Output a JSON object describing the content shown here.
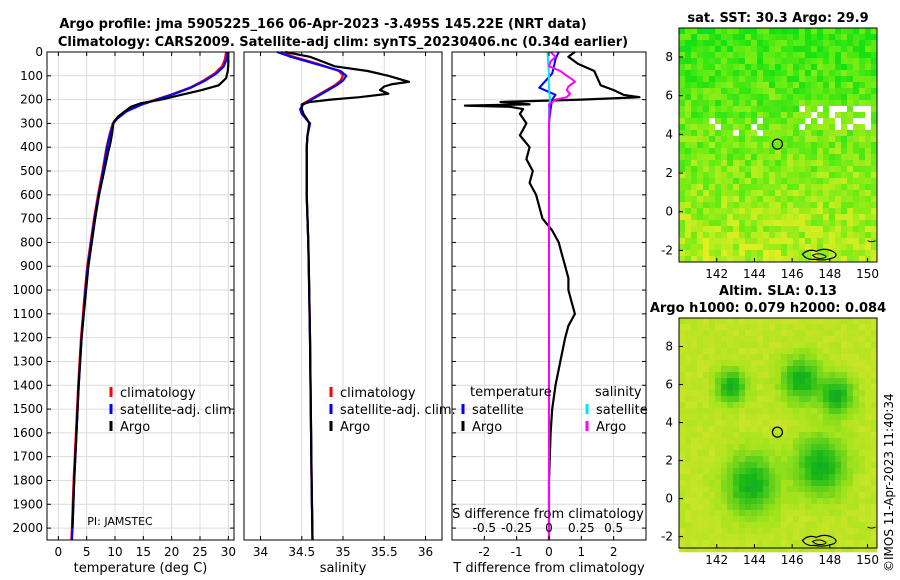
{
  "title_line1": "Argo profile: jma 5905225_166 06-Apr-2023 -3.495S 145.22E (NRT data)",
  "title_line2": "Climatology: CARS2009. Satellite-adj clim: synTS_20230406.nc (0.34d earlier)",
  "pi_label": "PI: JAMSTEC",
  "timestamp": "©IMOS 11-Apr-2023 11:40:34",
  "colors": {
    "climatology": "#ff0000",
    "satellite_adj": "#0000ff",
    "argo": "#000000",
    "sat_diff_s": "#00e5ff",
    "argo_diff_s": "#ff00ff"
  },
  "chart_data": [
    {
      "type": "line",
      "id": "temperature",
      "xlabel": "temperature (deg C)",
      "ylabel": "depth",
      "xlim": [
        -2,
        31
      ],
      "ylim": [
        0,
        2050
      ],
      "xticks": [
        0,
        5,
        10,
        15,
        20,
        25,
        30
      ],
      "yticks": [
        0,
        100,
        200,
        300,
        400,
        500,
        600,
        700,
        800,
        900,
        1000,
        1100,
        1200,
        1300,
        1400,
        1500,
        1600,
        1700,
        1800,
        1900,
        2000
      ],
      "legend": [
        "climatology",
        "satellite-adj. clim.",
        "Argo"
      ],
      "series": [
        {
          "name": "climatology",
          "depth": [
            0,
            30,
            60,
            90,
            120,
            150,
            180,
            200,
            220,
            250,
            280,
            300,
            350,
            400,
            500,
            600,
            700,
            800,
            900,
            1000,
            1200,
            1400,
            1600,
            1800,
            2000,
            2050
          ],
          "values": [
            29.6,
            29.4,
            28.9,
            27.6,
            25.6,
            23.2,
            19.8,
            17.2,
            14.6,
            11.9,
            10.3,
            9.6,
            9.0,
            8.5,
            7.8,
            7.0,
            6.3,
            5.7,
            5.1,
            4.7,
            4.0,
            3.5,
            3.1,
            2.7,
            2.4,
            2.3
          ]
        },
        {
          "name": "satellite-adj. clim.",
          "depth": [
            0,
            30,
            60,
            90,
            120,
            150,
            180,
            200,
            220,
            250,
            280,
            300,
            350,
            400,
            500,
            600,
            700,
            800,
            900,
            1000,
            1200,
            1400,
            1600,
            1800,
            2000,
            2050
          ],
          "values": [
            29.9,
            29.7,
            29.2,
            27.9,
            25.9,
            23.4,
            20.0,
            17.4,
            14.8,
            12.0,
            10.4,
            9.7,
            9.1,
            8.6,
            7.9,
            7.1,
            6.4,
            5.8,
            5.2,
            4.8,
            4.1,
            3.6,
            3.2,
            2.8,
            2.5,
            2.4
          ]
        },
        {
          "name": "Argo",
          "depth": [
            0,
            20,
            50,
            80,
            110,
            140,
            160,
            180,
            200,
            215,
            230,
            250,
            270,
            290,
            300,
            340,
            380,
            420,
            500,
            600,
            700,
            800,
            900,
            1000,
            1200,
            1400,
            1600,
            1800,
            2000
          ],
          "values": [
            30.0,
            30.0,
            30.0,
            29.9,
            29.6,
            28.3,
            25.3,
            21.7,
            18.2,
            14.6,
            12.8,
            11.7,
            10.6,
            9.9,
            9.7,
            9.5,
            9.2,
            8.8,
            8.1,
            7.2,
            6.5,
            5.9,
            5.3,
            4.9,
            4.1,
            3.6,
            3.2,
            2.8,
            2.5
          ]
        }
      ]
    },
    {
      "type": "line",
      "id": "salinity",
      "xlabel": "salinity",
      "ylabel": "depth",
      "xlim": [
        33.8,
        36.2
      ],
      "ylim": [
        0,
        2050
      ],
      "xticks": [
        34,
        34.5,
        35,
        35.5,
        36
      ],
      "tick_labels": [
        "34",
        "34.5",
        "35",
        "35.5",
        "36"
      ],
      "legend": [
        "climatology",
        "satellite-adj. clim.",
        "Argo"
      ],
      "series": [
        {
          "name": "climatology",
          "depth": [
            0,
            20,
            50,
            80,
            100,
            120,
            140,
            170,
            200,
            220,
            240,
            260,
            280,
            300,
            350,
            400,
            500,
            600,
            800,
            1000,
            1200,
            1500,
            1800,
            2050
          ],
          "values": [
            34.25,
            34.4,
            34.7,
            34.95,
            35.0,
            34.97,
            34.9,
            34.75,
            34.6,
            34.5,
            34.5,
            34.52,
            34.55,
            34.6,
            34.57,
            34.56,
            34.56,
            34.56,
            34.58,
            34.59,
            34.6,
            34.61,
            34.62,
            34.63
          ]
        },
        {
          "name": "satellite-adj. clim.",
          "depth": [
            0,
            20,
            50,
            80,
            100,
            120,
            140,
            170,
            200,
            220,
            240,
            260,
            280,
            300,
            350,
            400,
            500,
            600,
            800,
            1000,
            1200,
            1500,
            1800,
            2050
          ],
          "values": [
            34.2,
            34.37,
            34.67,
            34.97,
            35.04,
            35.0,
            34.92,
            34.77,
            34.62,
            34.52,
            34.48,
            34.5,
            34.55,
            34.6,
            34.57,
            34.56,
            34.56,
            34.56,
            34.58,
            34.59,
            34.6,
            34.61,
            34.62,
            34.63
          ]
        },
        {
          "name": "Argo",
          "depth": [
            0,
            20,
            40,
            60,
            80,
            100,
            115,
            125,
            135,
            145,
            160,
            175,
            190,
            200,
            210,
            220,
            240,
            260,
            280,
            300,
            350,
            400,
            500,
            600,
            800,
            1000,
            1200,
            1500,
            1800,
            2050
          ],
          "values": [
            34.3,
            34.6,
            34.75,
            34.9,
            35.3,
            35.55,
            35.7,
            35.8,
            35.6,
            35.5,
            35.45,
            35.55,
            35.2,
            34.85,
            34.6,
            34.5,
            34.5,
            34.52,
            34.56,
            34.59,
            34.57,
            34.56,
            34.56,
            34.56,
            34.58,
            34.59,
            34.6,
            34.61,
            34.62,
            34.63
          ]
        }
      ]
    },
    {
      "type": "line",
      "id": "differences",
      "xlabel": "T difference from climatology",
      "xlabel_top": "S difference from climatology",
      "xlim": [
        -3,
        3
      ],
      "ylim": [
        0,
        2050
      ],
      "xticks_T": [
        -2,
        -1,
        0,
        1,
        2
      ],
      "xticks_S_values": [
        -0.5,
        -0.25,
        0,
        0.25,
        0.5
      ],
      "xticks_S_labels": [
        "-0.5",
        "-0.25",
        "0",
        "0.25",
        "0.5"
      ],
      "legend_left_title": "temperature",
      "legend_right_title": "salinity",
      "legend_left": [
        "satellite",
        "Argo"
      ],
      "legend_right": [
        "satellite",
        "Argo"
      ],
      "series": [
        {
          "name": "temperature satellite",
          "depth": [
            0,
            30,
            60,
            90,
            120,
            150,
            180,
            200,
            240,
            300,
            400,
            600,
            800,
            1000,
            1500,
            2050
          ],
          "values": [
            0.3,
            0.2,
            0.15,
            0.1,
            -0.1,
            -0.3,
            0.2,
            0.1,
            0.05,
            0.0,
            0.0,
            0.0,
            0.0,
            0.0,
            0.0,
            0.0
          ]
        },
        {
          "name": "temperature Argo",
          "depth": [
            0,
            20,
            50,
            80,
            110,
            140,
            160,
            180,
            190,
            200,
            210,
            220,
            225,
            230,
            240,
            260,
            300,
            350,
            400,
            450,
            500,
            550,
            600,
            650,
            700,
            750,
            800,
            850,
            900,
            950,
            1000,
            1050,
            1100,
            1150,
            1200,
            1300,
            1400,
            1500,
            1600,
            1800,
            2050
          ],
          "values": [
            0.8,
            0.6,
            0.9,
            1.4,
            1.5,
            1.6,
            2.0,
            2.3,
            2.8,
            1.0,
            -1.5,
            -0.6,
            -2.6,
            -1.2,
            -0.8,
            -0.9,
            -0.7,
            -0.9,
            -0.6,
            -0.7,
            -0.5,
            -0.6,
            -0.4,
            -0.3,
            -0.2,
            0.1,
            0.3,
            0.4,
            0.5,
            0.6,
            0.6,
            0.7,
            0.8,
            0.6,
            0.5,
            0.35,
            0.2,
            0.1,
            0.05,
            0.0,
            0.0
          ]
        },
        {
          "name": "salinity satellite",
          "depth": [
            0,
            30,
            60,
            90,
            120,
            150,
            180,
            200,
            220,
            250,
            300,
            400,
            600,
            800,
            1000,
            1500,
            2050
          ],
          "values": [
            -0.05,
            -0.03,
            -0.02,
            0.0,
            -0.01,
            0.0,
            0.02,
            0.03,
            0.01,
            0.0,
            0.01,
            0.0,
            0.0,
            0.0,
            0.0,
            0.0,
            0.0
          ]
        },
        {
          "name": "salinity Argo",
          "depth": [
            0,
            20,
            40,
            60,
            80,
            100,
            115,
            125,
            135,
            145,
            160,
            175,
            190,
            200,
            210,
            220,
            240,
            300,
            400,
            600,
            800,
            1000,
            1500,
            2050
          ],
          "values": [
            0.05,
            0.2,
            0.05,
            0.0,
            0.35,
            0.55,
            0.72,
            0.8,
            0.7,
            0.6,
            0.55,
            0.65,
            0.55,
            0.2,
            0.1,
            0.0,
            0.02,
            0.0,
            0.0,
            0.0,
            0.0,
            0.0,
            0.0,
            0.0
          ]
        }
      ]
    },
    {
      "type": "heatmap",
      "id": "sst_map",
      "title": "sat. SST: 30.3 Argo: 29.9",
      "xlim": [
        140,
        150.5
      ],
      "ylim": [
        -2.6,
        9.5
      ],
      "xticks": [
        142,
        144,
        146,
        148,
        150
      ],
      "yticks": [
        -2,
        0,
        2,
        4,
        6,
        8
      ],
      "marker": {
        "lon": 145.22,
        "lat": -3.495,
        "label": "Argo"
      }
    },
    {
      "type": "heatmap",
      "id": "sla_map",
      "title": "Altim. SLA: 0.13",
      "subtitle": "Argo h1000: 0.079 h2000: 0.084",
      "xlim": [
        140,
        150.5
      ],
      "ylim": [
        -2.6,
        9.5
      ],
      "xticks": [
        142,
        144,
        146,
        148,
        150
      ],
      "yticks": [
        -2,
        0,
        2,
        4,
        6,
        8
      ],
      "marker": {
        "lon": 145.22,
        "lat": -3.495,
        "label": "Argo"
      }
    }
  ]
}
